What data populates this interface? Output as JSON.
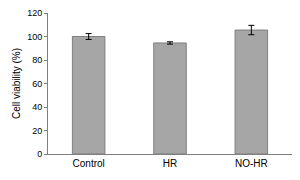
{
  "chart_data": {
    "type": "bar",
    "categories": [
      "Control",
      "HR",
      "NO-HR"
    ],
    "values": [
      100,
      94.5,
      105.5
    ],
    "errors": [
      2.5,
      1,
      4
    ],
    "color": "#a6a6a6",
    "y_label": "Cell viability (%)",
    "ylim": [
      0,
      120
    ],
    "yticks": [
      0,
      20,
      40,
      60,
      80,
      100,
      120
    ],
    "grid": false
  }
}
